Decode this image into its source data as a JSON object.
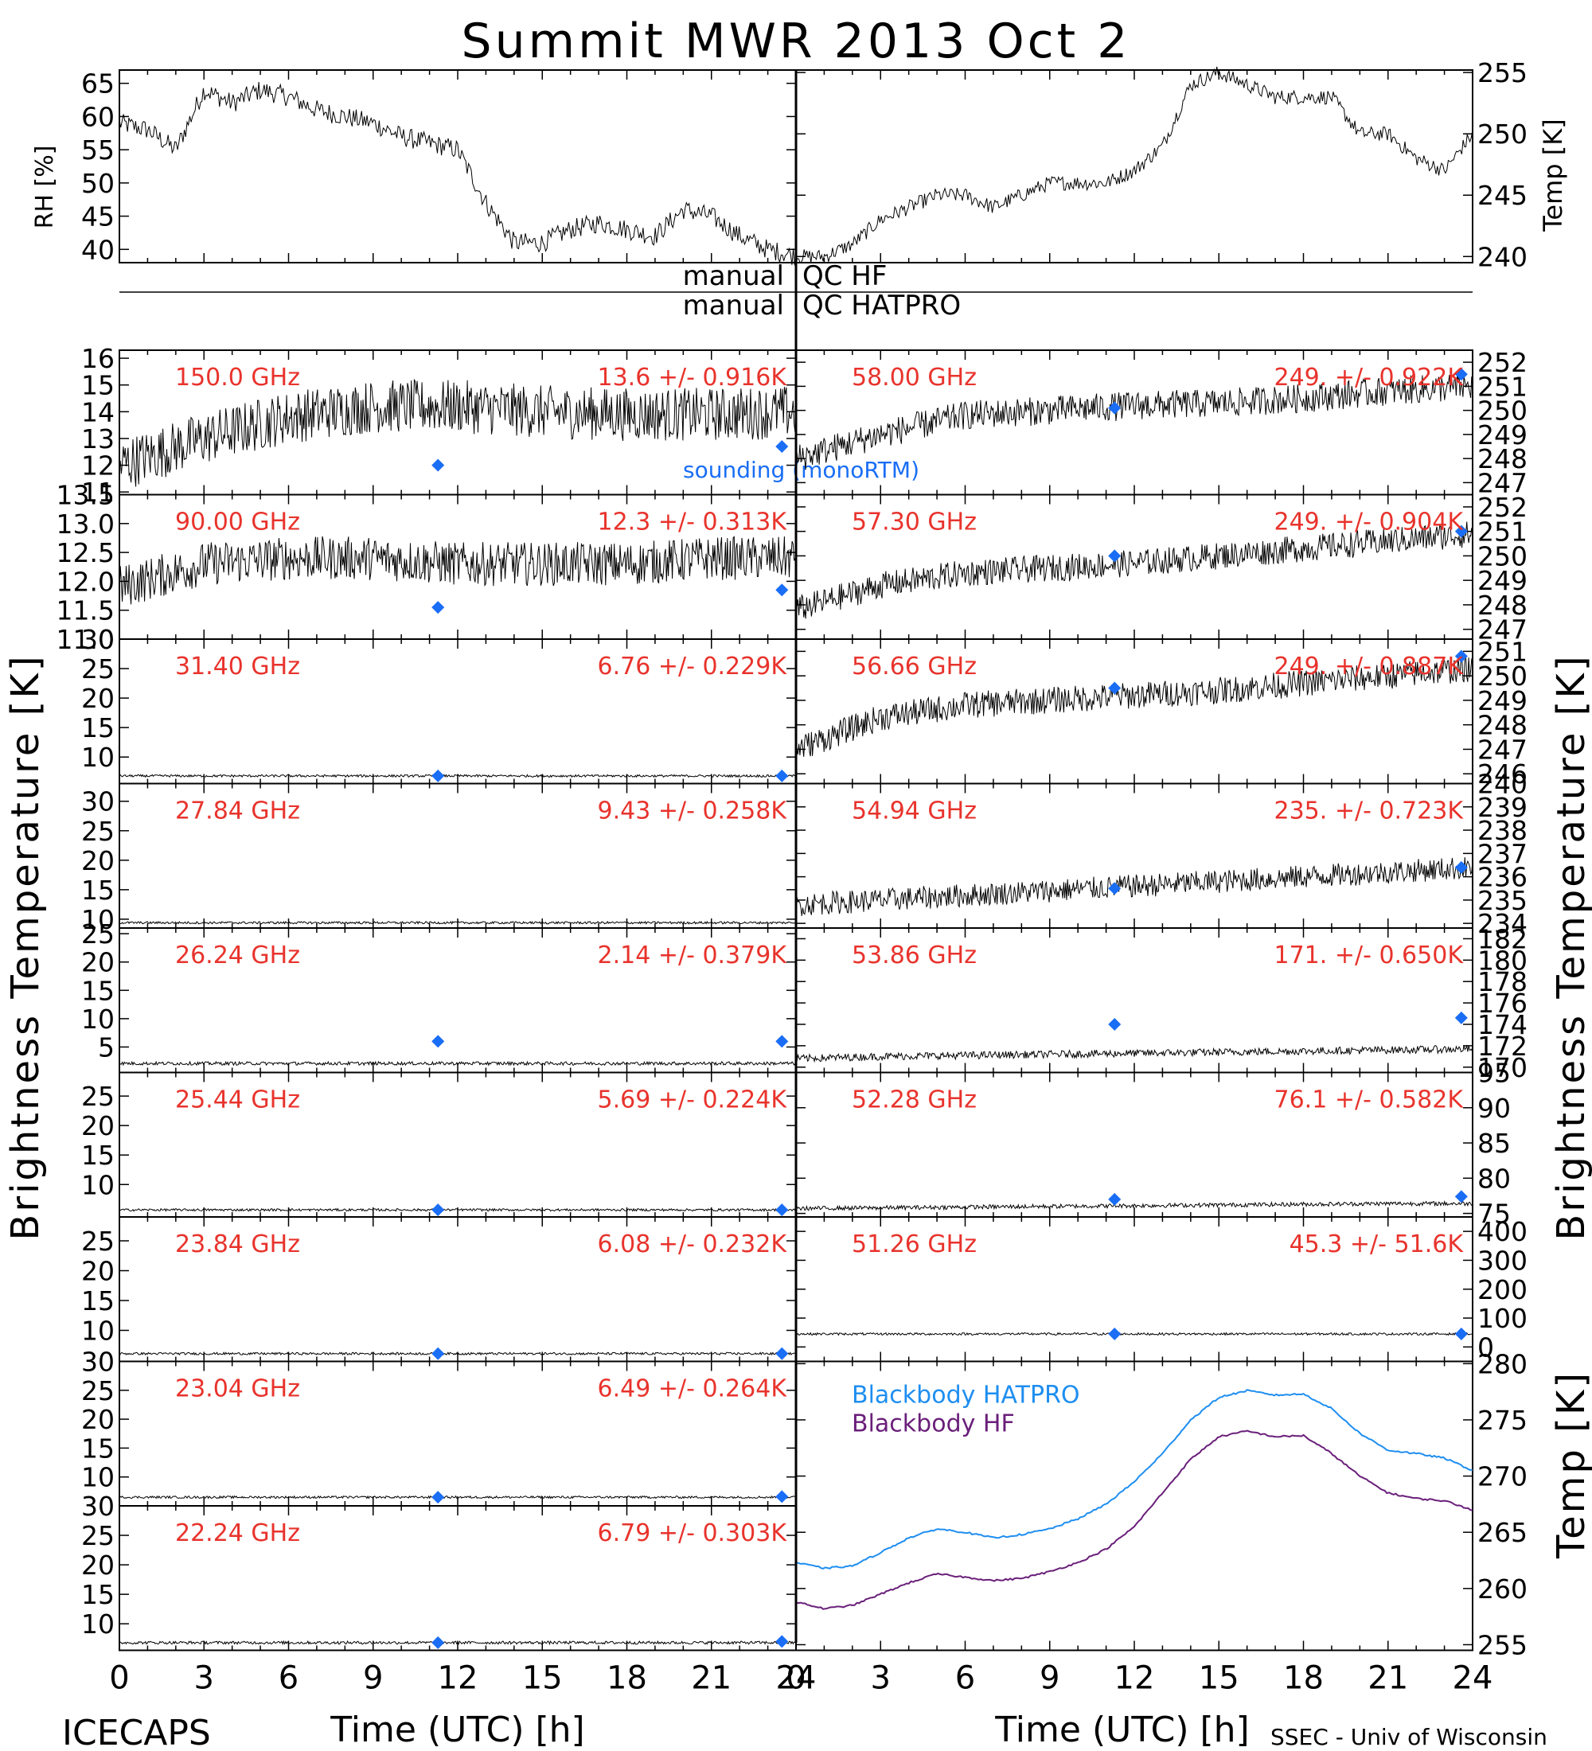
{
  "title": "Summit MWR 2013 Oct  2",
  "footer": {
    "left": "ICECAPS",
    "right": "SSEC - Univ of Wisconsin"
  },
  "colors": {
    "value_label": "#e8332c",
    "sounding": "#1a6ef5",
    "bb_hatpro": "#1e8ef0",
    "bb_hf": "#6a1f7a",
    "data": "#000000"
  },
  "labels": {
    "rh_axis": "RH [%]",
    "temp_axis": "Temp [K]",
    "tb_axis": "Brightness Temperature [K]",
    "temp_axis_bb": "Temp [K]",
    "time_axis": "Time (UTC) [h]",
    "qc_top_left": "manual",
    "qc_top_right": "QC HF",
    "qc_bottom_left": "manual",
    "qc_bottom_right": "QC HATPRO",
    "sounding_label": "sounding (monoRTM)",
    "legend_hatpro": "Blackbody HATPRO",
    "legend_hf": "Blackbody HF"
  },
  "chart_data": {
    "type": "line",
    "x_ticks": [
      "0",
      "3",
      "6",
      "9",
      "12",
      "15",
      "18",
      "21",
      "24"
    ],
    "met": {
      "rh": {
        "ylim": [
          38,
          67
        ],
        "yticks": [
          "40",
          "45",
          "50",
          "55",
          "60",
          "65"
        ],
        "x": [
          0,
          1,
          2,
          3,
          4,
          5,
          6,
          7,
          8,
          9,
          10,
          11,
          12,
          13,
          14,
          15,
          16,
          17,
          18,
          19,
          20,
          21,
          22,
          23,
          24
        ],
        "y": [
          59,
          58,
          55,
          64,
          62,
          64,
          63,
          61,
          60,
          59,
          57,
          56,
          55,
          47,
          41,
          41,
          43,
          44,
          43,
          42,
          46,
          45,
          42,
          40,
          39
        ]
      },
      "temp": {
        "ylim": [
          239.5,
          255.2
        ],
        "yticks": [
          "240",
          "245",
          "250",
          "255"
        ],
        "x": [
          0,
          1,
          2,
          3,
          4,
          5,
          6,
          7,
          8,
          9,
          10,
          11,
          12,
          13,
          14,
          15,
          16,
          17,
          18,
          19,
          20,
          21,
          22,
          23,
          24
        ],
        "y": [
          240,
          240,
          241,
          243,
          244,
          245,
          245,
          244,
          245,
          246,
          246,
          246,
          247,
          249,
          254,
          255,
          254,
          253,
          253,
          253,
          250,
          250,
          248,
          247,
          250
        ]
      }
    },
    "left_panels": [
      {
        "freq": "150.0 GHz",
        "stat": "13.6 +/- 0.916K",
        "ylim": [
          10.9,
          16.3
        ],
        "yticks": [
          "11",
          "12",
          "13",
          "14",
          "15",
          "16"
        ],
        "mean": [
          12.0,
          13.0,
          13.8,
          14.2,
          14.2,
          14.0,
          13.9,
          13.9,
          14.0
        ],
        "noise": 1.0,
        "sounding": [
          {
            "x": 11.3,
            "y": 12.0
          },
          {
            "x": 23.5,
            "y": 12.7
          }
        ]
      },
      {
        "freq": "90.00 GHz",
        "stat": "12.3 +/- 0.313K",
        "ylim": [
          11.0,
          13.5
        ],
        "yticks": [
          "11.0",
          "11.5",
          "12.0",
          "12.5",
          "13.0",
          "13.5"
        ],
        "mean": [
          11.9,
          12.3,
          12.4,
          12.4,
          12.3,
          12.3,
          12.3,
          12.4,
          12.4
        ],
        "noise": 0.38,
        "sounding": [
          {
            "x": 11.3,
            "y": 11.55
          },
          {
            "x": 23.5,
            "y": 11.85
          }
        ]
      },
      {
        "freq": "31.40 GHz",
        "stat": "6.76 +/- 0.229K",
        "ylim": [
          5.5,
          30
        ],
        "yticks": [
          "10",
          "15",
          "20",
          "25",
          "30"
        ],
        "mean": [
          6.8,
          6.8,
          6.8,
          6.8,
          6.8,
          6.8,
          6.8,
          6.8,
          6.8
        ],
        "noise": 0.2,
        "sounding": [
          {
            "x": 11.3,
            "y": 6.8
          },
          {
            "x": 23.5,
            "y": 6.8
          }
        ]
      },
      {
        "freq": "27.84 GHz",
        "stat": "9.43 +/- 0.258K",
        "ylim": [
          8.5,
          33
        ],
        "yticks": [
          "10",
          "15",
          "20",
          "25",
          "30"
        ],
        "mean": [
          9.4,
          9.4,
          9.4,
          9.4,
          9.4,
          9.4,
          9.4,
          9.4,
          9.4
        ],
        "noise": 0.2,
        "sounding": []
      },
      {
        "freq": "26.24 GHz",
        "stat": "2.14 +/- 0.379K",
        "ylim": [
          0.5,
          26
        ],
        "yticks": [
          "5",
          "10",
          "15",
          "20",
          "25"
        ],
        "mean": [
          2.1,
          2.1,
          2.1,
          2.1,
          2.1,
          2.1,
          2.1,
          2.1,
          2.1
        ],
        "noise": 0.3,
        "sounding": [
          {
            "x": 11.3,
            "y": 6.0
          },
          {
            "x": 23.5,
            "y": 6.0
          }
        ]
      },
      {
        "freq": "25.44 GHz",
        "stat": "5.69 +/- 0.224K",
        "ylim": [
          4.5,
          29
        ],
        "yticks": [
          "10",
          "15",
          "20",
          "25"
        ],
        "mean": [
          5.7,
          5.7,
          5.7,
          5.7,
          5.7,
          5.7,
          5.7,
          5.7,
          5.7
        ],
        "noise": 0.2,
        "sounding": [
          {
            "x": 11.3,
            "y": 5.7
          },
          {
            "x": 23.5,
            "y": 5.7
          }
        ]
      },
      {
        "freq": "23.84 GHz",
        "stat": "6.08 +/- 0.232K",
        "ylim": [
          4.8,
          29
        ],
        "yticks": [
          "10",
          "15",
          "20",
          "25"
        ],
        "mean": [
          6.1,
          6.1,
          6.1,
          6.1,
          6.1,
          6.1,
          6.1,
          6.1,
          6.1
        ],
        "noise": 0.2,
        "sounding": [
          {
            "x": 11.3,
            "y": 6.1
          },
          {
            "x": 23.5,
            "y": 6.1
          }
        ]
      },
      {
        "freq": "23.04 GHz",
        "stat": "6.49 +/- 0.264K",
        "ylim": [
          5.0,
          30
        ],
        "yticks": [
          "10",
          "15",
          "20",
          "25",
          "30"
        ],
        "mean": [
          6.5,
          6.5,
          6.5,
          6.5,
          6.5,
          6.5,
          6.5,
          6.5,
          6.5
        ],
        "noise": 0.2,
        "sounding": [
          {
            "x": 11.3,
            "y": 6.5
          },
          {
            "x": 23.5,
            "y": 6.6
          }
        ]
      },
      {
        "freq": "22.24 GHz",
        "stat": "6.79 +/- 0.303K",
        "ylim": [
          5.5,
          30
        ],
        "yticks": [
          "10",
          "15",
          "20",
          "25",
          "30"
        ],
        "mean": [
          6.8,
          6.8,
          6.8,
          6.8,
          6.8,
          6.8,
          6.8,
          6.8,
          6.8
        ],
        "noise": 0.25,
        "sounding": [
          {
            "x": 11.3,
            "y": 6.8
          },
          {
            "x": 23.5,
            "y": 7.0
          }
        ]
      }
    ],
    "right_panels": [
      {
        "freq": "58.00 GHz",
        "stat": "249. +/- 0.922K",
        "ylim": [
          246.5,
          252.5
        ],
        "yticks": [
          "247",
          "248",
          "249",
          "250",
          "251",
          "252"
        ],
        "mean": [
          248.0,
          249.0,
          249.8,
          250.0,
          250.2,
          250.3,
          250.5,
          250.8,
          251.0
        ],
        "noise": 0.6,
        "sounding": [
          {
            "x": 11.3,
            "y": 250.1
          },
          {
            "x": 23.6,
            "y": 251.5
          }
        ]
      },
      {
        "freq": "57.30 GHz",
        "stat": "249. +/- 0.904K",
        "ylim": [
          246.6,
          252.5
        ],
        "yticks": [
          "247",
          "248",
          "249",
          "250",
          "251",
          "252"
        ],
        "mean": [
          247.8,
          248.8,
          249.3,
          249.5,
          249.7,
          250.0,
          250.3,
          250.6,
          250.9
        ],
        "noise": 0.55,
        "sounding": [
          {
            "x": 11.3,
            "y": 250.0
          },
          {
            "x": 23.6,
            "y": 251.0
          }
        ]
      },
      {
        "freq": "56.66 GHz",
        "stat": "249. +/- 0.887K",
        "ylim": [
          245.6,
          251.5
        ],
        "yticks": [
          "246",
          "247",
          "248",
          "249",
          "250",
          "251"
        ],
        "mean": [
          247.0,
          248.3,
          248.8,
          249.0,
          249.2,
          249.4,
          249.7,
          250.0,
          250.3
        ],
        "noise": 0.55,
        "sounding": [
          {
            "x": 11.3,
            "y": 249.5
          },
          {
            "x": 23.6,
            "y": 250.8
          }
        ]
      },
      {
        "freq": "54.94 GHz",
        "stat": "235. +/- 0.723K",
        "ylim": [
          233.8,
          240
        ],
        "yticks": [
          "234",
          "235",
          "236",
          "237",
          "238",
          "239",
          "240"
        ],
        "mean": [
          234.8,
          235.0,
          235.2,
          235.4,
          235.6,
          235.8,
          236.0,
          236.2,
          236.4
        ],
        "noise": 0.5,
        "sounding": [
          {
            "x": 11.3,
            "y": 235.5
          },
          {
            "x": 23.6,
            "y": 236.4
          }
        ]
      },
      {
        "freq": "53.86 GHz",
        "stat": "171. +/- 0.650K",
        "ylim": [
          169.5,
          183
        ],
        "yticks": [
          "170",
          "172",
          "174",
          "176",
          "178",
          "180",
          "182"
        ],
        "mean": [
          170.8,
          171.0,
          171.1,
          171.2,
          171.3,
          171.4,
          171.5,
          171.6,
          171.7
        ],
        "noise": 0.35,
        "sounding": [
          {
            "x": 11.3,
            "y": 174.0
          },
          {
            "x": 23.6,
            "y": 174.6
          }
        ]
      },
      {
        "freq": "52.28 GHz",
        "stat": "76.1 +/- 0.582K",
        "ylim": [
          74.5,
          95
        ],
        "yticks": [
          "75",
          "80",
          "85",
          "90",
          "95"
        ],
        "mean": [
          75.7,
          75.8,
          75.9,
          76.0,
          76.1,
          76.2,
          76.3,
          76.4,
          76.4
        ],
        "noise": 0.3,
        "sounding": [
          {
            "x": 11.3,
            "y": 77.0
          },
          {
            "x": 23.6,
            "y": 77.4
          }
        ]
      },
      {
        "freq": "51.26 GHz",
        "stat": "45.3 +/- 51.6K",
        "ylim": [
          -50,
          450
        ],
        "yticks": [
          "0",
          "100",
          "200",
          "300",
          "400"
        ],
        "mean": [
          45,
          45,
          45,
          45,
          45,
          45,
          45,
          45,
          45
        ],
        "noise": 4,
        "sounding": [
          {
            "x": 11.3,
            "y": 45
          },
          {
            "x": 23.6,
            "y": 45
          }
        ]
      }
    ],
    "blackbody": {
      "ylim": [
        254.5,
        280.2
      ],
      "yticks": [
        "255",
        "260",
        "265",
        "270",
        "275",
        "280"
      ],
      "x": [
        0,
        1,
        2,
        3,
        4,
        5,
        6,
        7,
        8,
        9,
        10,
        11,
        12,
        13,
        14,
        15,
        16,
        17,
        18,
        19,
        20,
        21,
        22,
        23,
        24
      ],
      "hatpro": [
        262.3,
        261.8,
        262.0,
        263.2,
        264.5,
        265.3,
        265.0,
        264.5,
        264.8,
        265.3,
        266.2,
        267.5,
        269.5,
        272.0,
        275.0,
        277.0,
        277.6,
        277.2,
        277.3,
        276.0,
        273.8,
        272.3,
        272.0,
        271.6,
        270.5
      ],
      "hf": [
        258.8,
        258.2,
        258.5,
        259.5,
        260.5,
        261.3,
        261.0,
        260.7,
        260.9,
        261.5,
        262.3,
        263.5,
        265.5,
        268.5,
        271.5,
        273.5,
        274.0,
        273.5,
        273.6,
        272.0,
        270.0,
        268.5,
        268.0,
        267.8,
        267.0
      ]
    }
  }
}
